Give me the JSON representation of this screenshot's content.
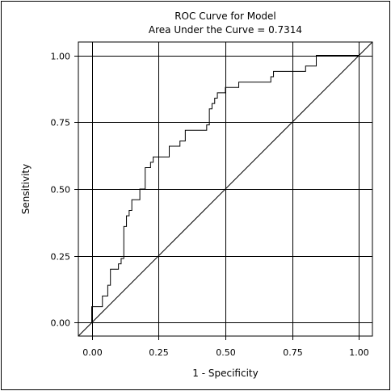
{
  "chart_data": {
    "type": "line",
    "title": "ROC Curve for Model",
    "subtitle": "Area Under the Curve = 0.7314",
    "xlabel": "1 - Specificity",
    "ylabel": "Sensitivity",
    "xlim": [
      -0.05,
      1.05
    ],
    "ylim": [
      -0.05,
      1.05
    ],
    "x_ticks": [
      0.0,
      0.25,
      0.5,
      0.75,
      1.0
    ],
    "x_tick_labels": [
      "0.00",
      "0.25",
      "0.50",
      "0.75",
      "1.00"
    ],
    "y_ticks": [
      0.0,
      0.25,
      0.5,
      0.75,
      1.0
    ],
    "y_tick_labels": [
      "0.00",
      "0.25",
      "0.50",
      "0.75",
      "1.00"
    ],
    "grid": true,
    "legend": "none",
    "colors": {
      "line": "#000000",
      "grid": "#000000",
      "background": "#ffffff"
    },
    "series": [
      {
        "values": [
          [
            0.0,
            0.0
          ],
          [
            0.0,
            0.02
          ],
          [
            0.0,
            0.06
          ],
          [
            0.04,
            0.06
          ],
          [
            0.04,
            0.1
          ],
          [
            0.06,
            0.1
          ],
          [
            0.06,
            0.12
          ],
          [
            0.06,
            0.14
          ],
          [
            0.07,
            0.14
          ],
          [
            0.07,
            0.16
          ],
          [
            0.07,
            0.18
          ],
          [
            0.07,
            0.2
          ],
          [
            0.1,
            0.2
          ],
          [
            0.1,
            0.22
          ],
          [
            0.11,
            0.22
          ],
          [
            0.11,
            0.24
          ],
          [
            0.12,
            0.24
          ],
          [
            0.12,
            0.26
          ],
          [
            0.12,
            0.3
          ],
          [
            0.12,
            0.36
          ],
          [
            0.13,
            0.36
          ],
          [
            0.13,
            0.4
          ],
          [
            0.14,
            0.4
          ],
          [
            0.14,
            0.42
          ],
          [
            0.15,
            0.42
          ],
          [
            0.15,
            0.46
          ],
          [
            0.18,
            0.46
          ],
          [
            0.18,
            0.5
          ],
          [
            0.2,
            0.5
          ],
          [
            0.2,
            0.58
          ],
          [
            0.22,
            0.58
          ],
          [
            0.22,
            0.6
          ],
          [
            0.23,
            0.6
          ],
          [
            0.23,
            0.62
          ],
          [
            0.29,
            0.62
          ],
          [
            0.29,
            0.66
          ],
          [
            0.33,
            0.66
          ],
          [
            0.33,
            0.68
          ],
          [
            0.35,
            0.68
          ],
          [
            0.35,
            0.72
          ],
          [
            0.43,
            0.72
          ],
          [
            0.43,
            0.74
          ],
          [
            0.44,
            0.74
          ],
          [
            0.44,
            0.76
          ],
          [
            0.44,
            0.8
          ],
          [
            0.45,
            0.8
          ],
          [
            0.45,
            0.82
          ],
          [
            0.46,
            0.82
          ],
          [
            0.46,
            0.84
          ],
          [
            0.47,
            0.84
          ],
          [
            0.47,
            0.86
          ],
          [
            0.5,
            0.86
          ],
          [
            0.5,
            0.88
          ],
          [
            0.55,
            0.88
          ],
          [
            0.55,
            0.9
          ],
          [
            0.67,
            0.9
          ],
          [
            0.67,
            0.92
          ],
          [
            0.68,
            0.92
          ],
          [
            0.68,
            0.94
          ],
          [
            0.8,
            0.94
          ],
          [
            0.8,
            0.96
          ],
          [
            0.84,
            0.96
          ],
          [
            0.84,
            1.0
          ],
          [
            1.0,
            1.0
          ]
        ]
      },
      {
        "values": [
          [
            -0.05,
            -0.05
          ],
          [
            1.05,
            1.05
          ]
        ]
      }
    ]
  }
}
